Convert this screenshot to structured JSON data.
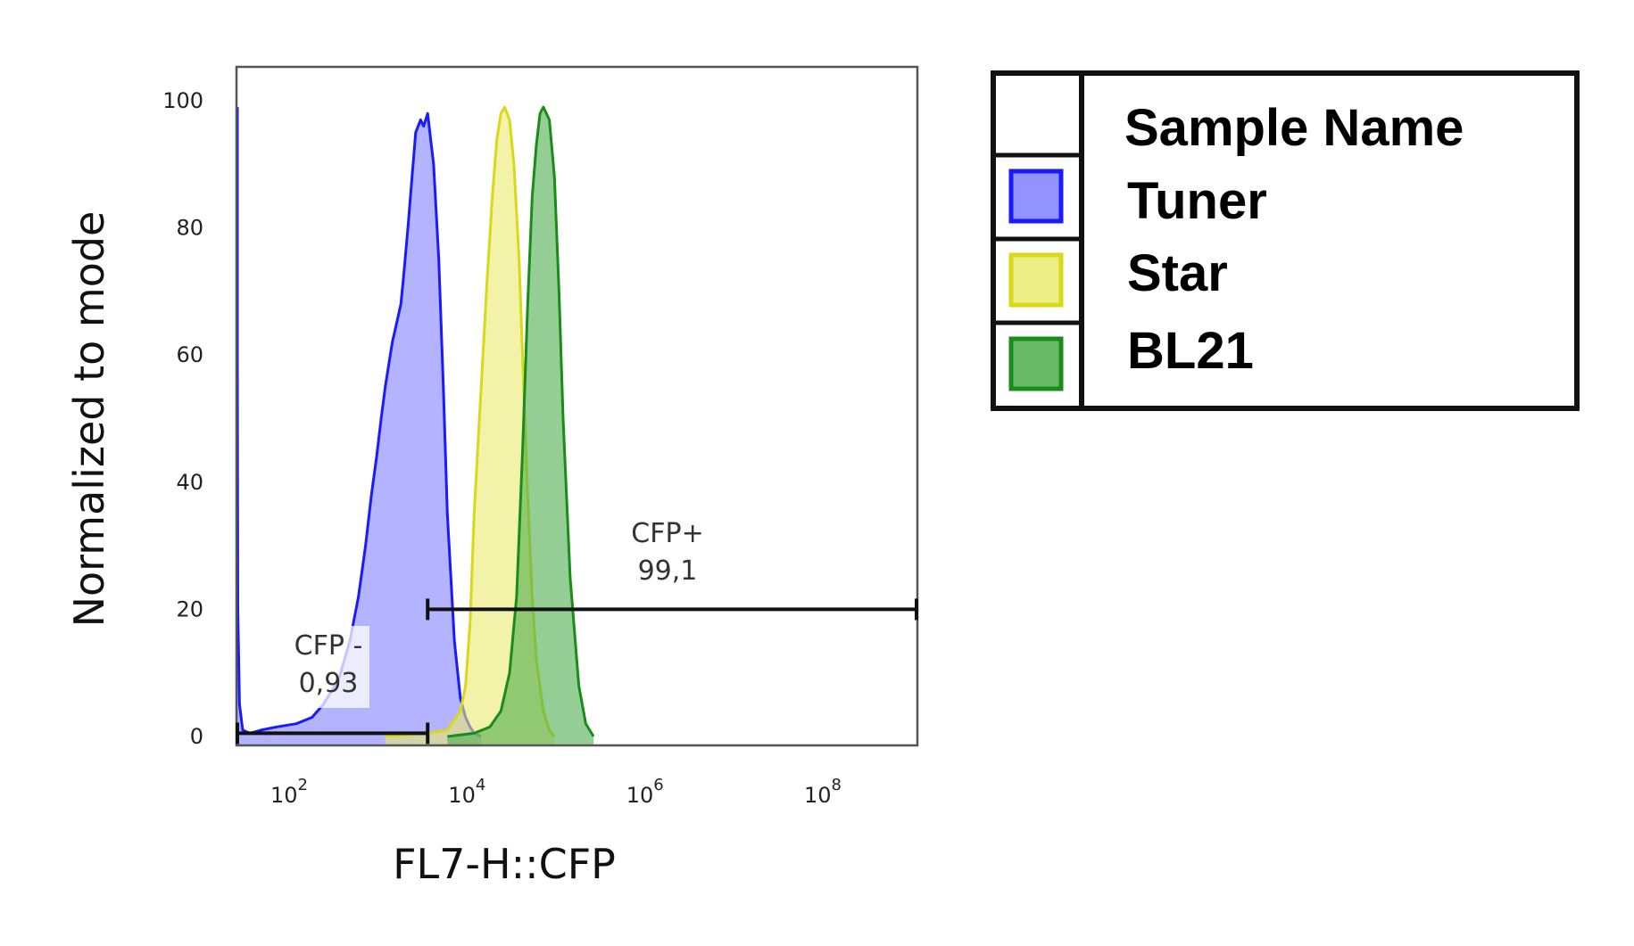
{
  "chart_data": {
    "type": "area",
    "title": "",
    "xlabel": "FL7-H::CFP",
    "ylabel": "Normalized to mode",
    "xscale": "log",
    "xlim": [
      20,
      1000000000
    ],
    "ylim": [
      0,
      100
    ],
    "x_ticks": [
      {
        "value": 100,
        "base": "10",
        "exp": "2"
      },
      {
        "value": 10000,
        "base": "10",
        "exp": "4"
      },
      {
        "value": 1000000,
        "base": "10",
        "exp": "6"
      },
      {
        "value": 100000000,
        "base": "10",
        "exp": "8"
      }
    ],
    "y_ticks": [
      "0",
      "20",
      "40",
      "60",
      "80",
      "100"
    ],
    "grid": false,
    "legend_placement": "right",
    "legend_header": "Sample Name",
    "series": [
      {
        "name": "Tuner",
        "stroke": "#1a1aff",
        "fill": "#8080ff",
        "x": [
          20,
          21,
          22,
          23,
          25,
          30,
          40,
          60,
          100,
          150,
          200,
          300,
          400,
          500,
          600,
          700,
          800,
          900,
          1000,
          1200,
          1500,
          1600,
          1800,
          2000,
          2200,
          2500,
          2700,
          3000,
          3500,
          4000,
          4500,
          5000,
          6000,
          7000,
          8000,
          9000,
          10000,
          12000
        ],
        "y": [
          99,
          60,
          20,
          5,
          1,
          0.5,
          1,
          1.5,
          2,
          3,
          5,
          9,
          15,
          22,
          30,
          38,
          44,
          50,
          55,
          62,
          68,
          72,
          80,
          88,
          95,
          97,
          96,
          98,
          90,
          75,
          55,
          35,
          15,
          6,
          3,
          1.5,
          0.5,
          0
        ]
      },
      {
        "name": "Star",
        "stroke": "#d9d91a",
        "fill": "#eaea70",
        "x": [
          1000,
          3000,
          5000,
          7000,
          8000,
          9000,
          10000,
          12000,
          14000,
          16000,
          18000,
          20000,
          22000,
          25000,
          28000,
          32000,
          36000,
          40000,
          45000,
          50000,
          60000,
          70000,
          80000
        ],
        "y": [
          0,
          0.5,
          1,
          4,
          8,
          18,
          35,
          55,
          72,
          85,
          94,
          98,
          99,
          97,
          90,
          75,
          55,
          38,
          22,
          12,
          4,
          1,
          0
        ]
      },
      {
        "name": "BL21",
        "stroke": "#1a8c1a",
        "fill": "#4fae4f",
        "x": [
          5000,
          10000,
          15000,
          20000,
          25000,
          30000,
          35000,
          40000,
          45000,
          50000,
          55000,
          60000,
          70000,
          80000,
          90000,
          100000,
          120000,
          150000,
          180000,
          220000
        ],
        "y": [
          0,
          0.5,
          1.5,
          4,
          10,
          22,
          45,
          68,
          85,
          93,
          98,
          99,
          97,
          88,
          70,
          50,
          25,
          8,
          2,
          0
        ]
      }
    ],
    "gates": [
      {
        "label": "CFP -",
        "value": "0,93",
        "x_from": 20,
        "x_to": 3000,
        "y": 0.5
      },
      {
        "label": "CFP+",
        "value": "99,1",
        "x_from": 3000,
        "x_to": 1000000000,
        "y": 20
      }
    ]
  }
}
